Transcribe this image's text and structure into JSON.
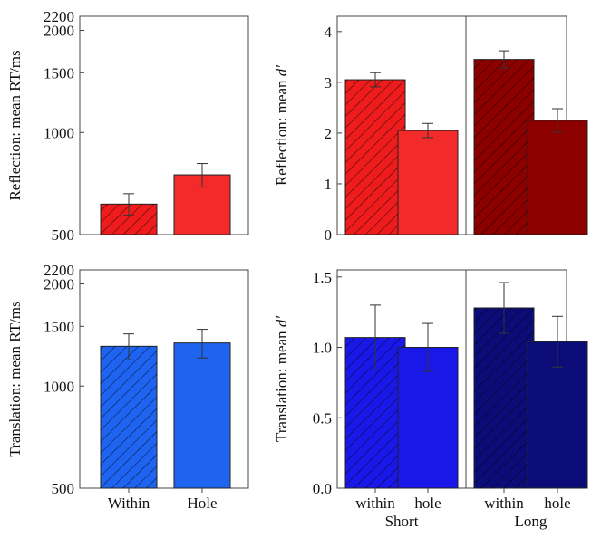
{
  "chart_data": [
    {
      "id": "reflection_rt",
      "type": "bar",
      "ylabel": "Reflection: mean RT/ms",
      "yscale": "log",
      "ylim": [
        500,
        2200
      ],
      "yticks": [
        500,
        1000,
        1500,
        2000,
        2200
      ],
      "categories": [
        "Within",
        "Hole"
      ],
      "series": [
        {
          "values": [
            615,
            750
          ],
          "errors": [
            45,
            60
          ],
          "colors": [
            "#ee1c1c",
            "#f22a2a"
          ],
          "hatched": [
            true,
            false
          ]
        }
      ]
    },
    {
      "id": "reflection_dprime",
      "type": "bar",
      "ylabel": "Reflection: mean d′",
      "ylim": [
        0,
        4.3
      ],
      "yticks": [
        0,
        1,
        2,
        3,
        4
      ],
      "categories": [
        "within",
        "hole",
        "within",
        "hole"
      ],
      "groups": [
        "Short",
        "Long"
      ],
      "series": [
        {
          "values": [
            3.05,
            2.05,
            3.45,
            2.25
          ],
          "errors": [
            0.14,
            0.14,
            0.17,
            0.23
          ],
          "colors": [
            "#ee1c1c",
            "#f22a2a",
            "#8c0000",
            "#8c0000"
          ],
          "hatched": [
            true,
            false,
            true,
            false
          ]
        }
      ]
    },
    {
      "id": "translation_rt",
      "type": "bar",
      "ylabel": "Translation: mean RT/ms",
      "yscale": "log",
      "ylim": [
        500,
        2200
      ],
      "yticks": [
        500,
        1000,
        1500,
        2000,
        2200
      ],
      "categories": [
        "Within",
        "Hole"
      ],
      "series": [
        {
          "values": [
            1310,
            1340
          ],
          "errors": [
            115,
            130
          ],
          "colors": [
            "#1e64f0",
            "#1e64f0"
          ],
          "hatched": [
            true,
            false
          ]
        }
      ]
    },
    {
      "id": "translation_dprime",
      "type": "bar",
      "ylabel": "Translation: mean d′",
      "ylim": [
        0,
        1.55
      ],
      "yticks": [
        0.0,
        0.5,
        1.0,
        1.5
      ],
      "categories": [
        "within",
        "hole",
        "within",
        "hole"
      ],
      "groups": [
        "Short",
        "Long"
      ],
      "series": [
        {
          "values": [
            1.07,
            1.0,
            1.28,
            1.04
          ],
          "errors": [
            0.23,
            0.17,
            0.18,
            0.18
          ],
          "colors": [
            "#1a18e8",
            "#1a18e8",
            "#0c0c78",
            "#0c0c78"
          ],
          "hatched": [
            true,
            false,
            true,
            false
          ]
        }
      ]
    }
  ]
}
